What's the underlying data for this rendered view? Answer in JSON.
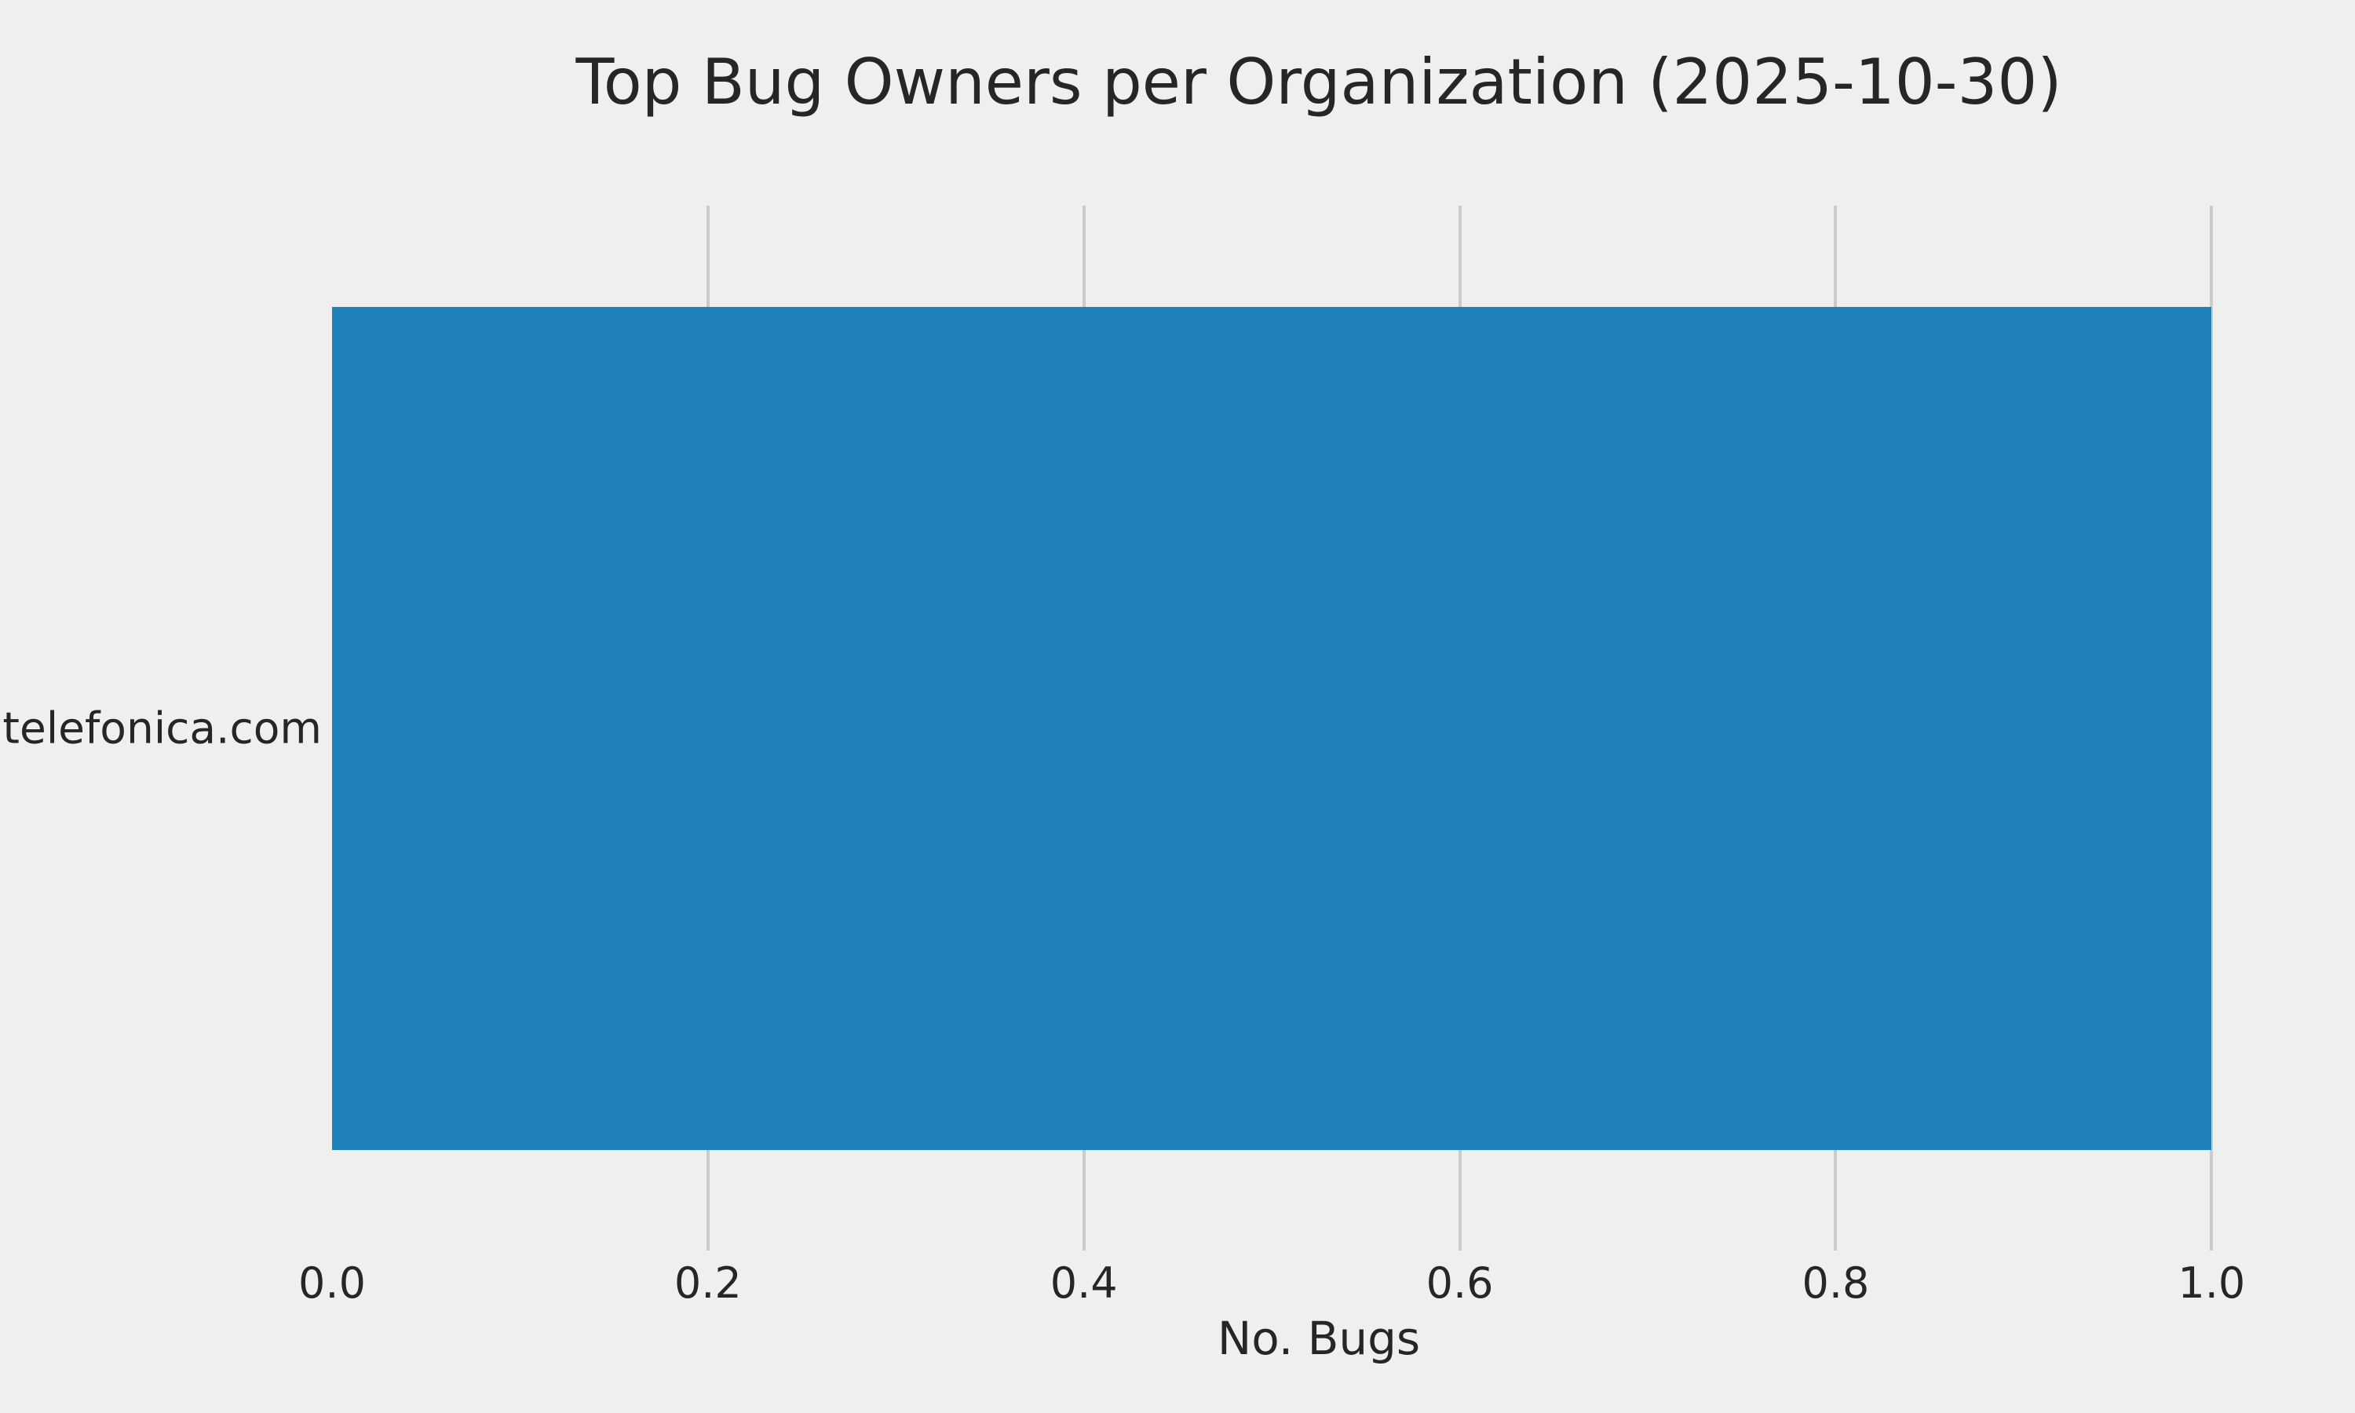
{
  "chart_data": {
    "type": "bar",
    "orientation": "horizontal",
    "title": "Top Bug Owners per Organization (2025-10-30)",
    "categories": [
      "telefonica.com"
    ],
    "values": [
      1.0
    ],
    "xlabel": "No. Bugs",
    "ylabel": "",
    "xlim": [
      0.0,
      1.05
    ],
    "xticks": [
      0.0,
      0.2,
      0.4,
      0.6,
      0.8,
      1.0
    ],
    "xtick_labels": [
      "0.0",
      "0.2",
      "0.4",
      "0.6",
      "0.8",
      "1.0"
    ],
    "grid": true,
    "grid_axis": "x",
    "legend": false,
    "colors": {
      "bar": "#1f82b8",
      "background": "#efefef",
      "grid": "#cbcbcb",
      "text": "#262626"
    }
  }
}
